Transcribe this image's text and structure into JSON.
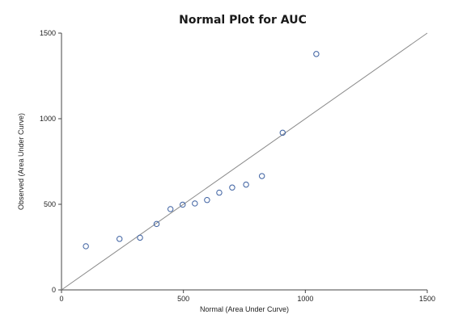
{
  "chart_data": {
    "type": "scatter",
    "title": "Normal Plot for AUC",
    "xlabel": "Normal (Area Under Curve)",
    "ylabel": "Observed (Area Under Curve)",
    "xlim": [
      0,
      1500
    ],
    "ylim": [
      0,
      1500
    ],
    "xticks": [
      "0",
      "500",
      "1000",
      "1500"
    ],
    "yticks": [
      "0",
      "500",
      "1000",
      "1500"
    ],
    "grid": false,
    "legend": "none",
    "reference_line": {
      "from": [
        0,
        0
      ],
      "to": [
        1500,
        1500
      ]
    },
    "points": [
      {
        "x": 100,
        "y": 255
      },
      {
        "x": 238,
        "y": 298
      },
      {
        "x": 322,
        "y": 305
      },
      {
        "x": 390,
        "y": 385
      },
      {
        "x": 447,
        "y": 472
      },
      {
        "x": 497,
        "y": 498
      },
      {
        "x": 547,
        "y": 505
      },
      {
        "x": 597,
        "y": 525
      },
      {
        "x": 647,
        "y": 568
      },
      {
        "x": 700,
        "y": 598
      },
      {
        "x": 757,
        "y": 615
      },
      {
        "x": 822,
        "y": 665
      },
      {
        "x": 907,
        "y": 918
      },
      {
        "x": 1045,
        "y": 1378
      }
    ],
    "colors": {
      "points": "#3b5fa0",
      "reference_line": "#8a8a8a",
      "axes": "#444444"
    }
  }
}
